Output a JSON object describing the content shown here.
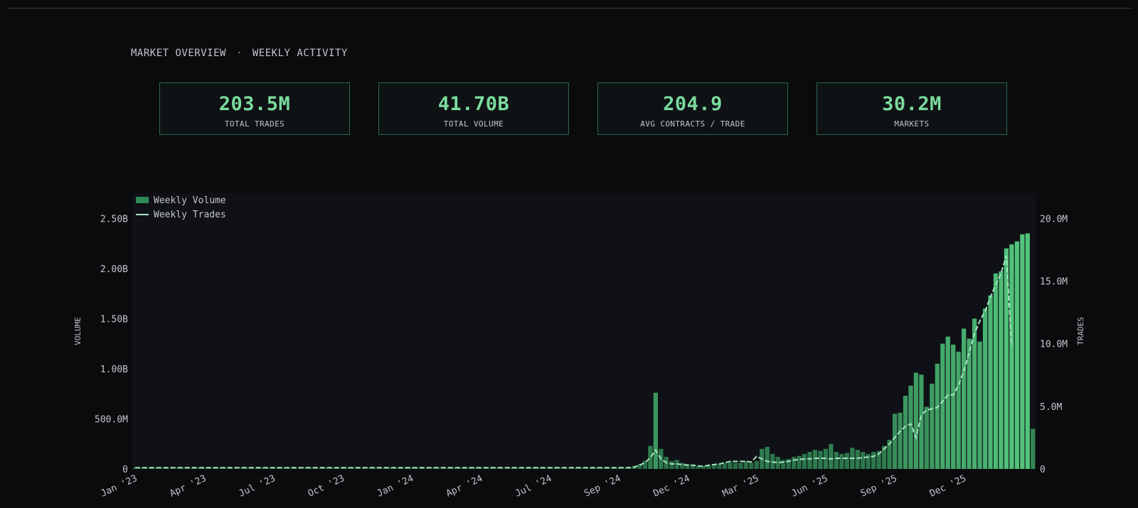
{
  "header": {
    "section": "MARKET OVERVIEW",
    "separator": "·",
    "subsection": "WEEKLY ACTIVITY"
  },
  "kpis": [
    {
      "value": "203.5M",
      "label": "TOTAL TRADES"
    },
    {
      "value": "41.70B",
      "label": "TOTAL VOLUME"
    },
    {
      "value": "204.9",
      "label": "AVG CONTRACTS / TRADE"
    },
    {
      "value": "30.2M",
      "label": "MARKETS"
    }
  ],
  "colors": {
    "background": "#0a0b0d",
    "plot_background": "#0f1117",
    "bar_dark": "#1f5c3b",
    "bar_light": "#4fbf78",
    "line": "#a7e3c0",
    "accent": "#7bdb9e"
  },
  "chart_data": {
    "type": "bar",
    "title": "",
    "ylabel": "VOLUME",
    "y2label": "TRADES",
    "legend": [
      "Weekly Volume",
      "Weekly Trades"
    ],
    "legend_position": "top-left",
    "ylim": [
      0,
      2.75
    ],
    "y_unit": "B",
    "y2lim": [
      0,
      22
    ],
    "y2_unit": "M",
    "yticks": [
      "0",
      "500.0M",
      "1.00B",
      "1.50B",
      "2.00B",
      "2.50B"
    ],
    "y2ticks": [
      "0",
      "5.0M",
      "10.0M",
      "15.0M",
      "20.0M"
    ],
    "xticks": [
      "Jan '23",
      "Apr '23",
      "Jul '23",
      "Oct '23",
      "Jan '24",
      "Apr '24",
      "Jul '24",
      "Sep '24",
      "Dec '24",
      "Mar '25",
      "Jun '25",
      "Sep '25",
      "Dec '25"
    ],
    "xtick_weeks": [
      0,
      13,
      26,
      39,
      52,
      65,
      78,
      91,
      104,
      117,
      130,
      143,
      156
    ],
    "weeks_start": "Jan '23",
    "weekly_volume_B": [
      0.01,
      0.01,
      0.01,
      0.01,
      0.01,
      0.01,
      0.01,
      0.01,
      0.01,
      0.01,
      0.01,
      0.01,
      0.01,
      0.01,
      0.01,
      0.01,
      0.01,
      0.01,
      0.01,
      0.01,
      0.01,
      0.01,
      0.01,
      0.01,
      0.01,
      0.01,
      0.01,
      0.01,
      0.01,
      0.01,
      0.01,
      0.01,
      0.01,
      0.01,
      0.01,
      0.01,
      0.01,
      0.01,
      0.01,
      0.01,
      0.01,
      0.01,
      0.01,
      0.01,
      0.01,
      0.01,
      0.01,
      0.01,
      0.01,
      0.01,
      0.01,
      0.01,
      0.01,
      0.01,
      0.01,
      0.01,
      0.01,
      0.01,
      0.01,
      0.01,
      0.01,
      0.01,
      0.01,
      0.01,
      0.01,
      0.01,
      0.01,
      0.01,
      0.01,
      0.01,
      0.01,
      0.01,
      0.01,
      0.01,
      0.01,
      0.01,
      0.01,
      0.01,
      0.01,
      0.01,
      0.01,
      0.01,
      0.01,
      0.01,
      0.01,
      0.01,
      0.01,
      0.01,
      0.01,
      0.01,
      0.01,
      0.01,
      0.01,
      0.02,
      0.03,
      0.05,
      0.08,
      0.23,
      0.76,
      0.2,
      0.12,
      0.08,
      0.09,
      0.06,
      0.05,
      0.04,
      0.03,
      0.03,
      0.04,
      0.04,
      0.05,
      0.06,
      0.07,
      0.06,
      0.06,
      0.08,
      0.06,
      0.08,
      0.2,
      0.22,
      0.15,
      0.12,
      0.09,
      0.1,
      0.12,
      0.13,
      0.15,
      0.17,
      0.19,
      0.18,
      0.2,
      0.25,
      0.17,
      0.15,
      0.16,
      0.21,
      0.19,
      0.17,
      0.15,
      0.17,
      0.18,
      0.23,
      0.29,
      0.55,
      0.56,
      0.73,
      0.83,
      0.96,
      0.94,
      0.62,
      0.85,
      1.05,
      1.25,
      1.32,
      1.24,
      1.17,
      1.4,
      1.3,
      1.5,
      1.27,
      1.6,
      1.73,
      1.95,
      1.97,
      2.2,
      2.24,
      2.27,
      2.34,
      2.35,
      0.4
    ],
    "weekly_trades_M": [
      0.1,
      0.1,
      0.1,
      0.1,
      0.1,
      0.1,
      0.1,
      0.1,
      0.1,
      0.1,
      0.1,
      0.1,
      0.1,
      0.1,
      0.1,
      0.1,
      0.1,
      0.1,
      0.1,
      0.1,
      0.1,
      0.1,
      0.1,
      0.1,
      0.1,
      0.1,
      0.1,
      0.1,
      0.1,
      0.1,
      0.1,
      0.1,
      0.1,
      0.1,
      0.1,
      0.1,
      0.1,
      0.1,
      0.1,
      0.1,
      0.1,
      0.1,
      0.1,
      0.1,
      0.1,
      0.1,
      0.1,
      0.1,
      0.1,
      0.1,
      0.1,
      0.1,
      0.1,
      0.1,
      0.1,
      0.1,
      0.1,
      0.1,
      0.1,
      0.1,
      0.1,
      0.1,
      0.1,
      0.1,
      0.1,
      0.1,
      0.1,
      0.1,
      0.1,
      0.1,
      0.1,
      0.1,
      0.1,
      0.1,
      0.1,
      0.1,
      0.1,
      0.1,
      0.1,
      0.1,
      0.1,
      0.1,
      0.1,
      0.1,
      0.1,
      0.1,
      0.1,
      0.1,
      0.1,
      0.1,
      0.1,
      0.1,
      0.1,
      0.1,
      0.15,
      0.3,
      0.5,
      0.9,
      1.5,
      0.8,
      0.5,
      0.4,
      0.4,
      0.35,
      0.3,
      0.3,
      0.25,
      0.2,
      0.3,
      0.35,
      0.4,
      0.5,
      0.6,
      0.6,
      0.6,
      0.6,
      0.55,
      1.0,
      0.8,
      0.6,
      0.55,
      0.5,
      0.55,
      0.6,
      0.7,
      0.75,
      0.8,
      0.8,
      0.85,
      0.85,
      0.85,
      0.8,
      0.85,
      0.85,
      0.85,
      0.85,
      0.85,
      0.9,
      0.95,
      1.0,
      1.2,
      1.6,
      2.0,
      2.5,
      3.0,
      3.4,
      3.6,
      2.5,
      4.3,
      4.7,
      4.8,
      4.9,
      5.4,
      5.9,
      5.9,
      6.7,
      7.8,
      9.3,
      10.8,
      11.8,
      12.6,
      13.7,
      14.7,
      15.6,
      17.0,
      9.8
    ]
  }
}
